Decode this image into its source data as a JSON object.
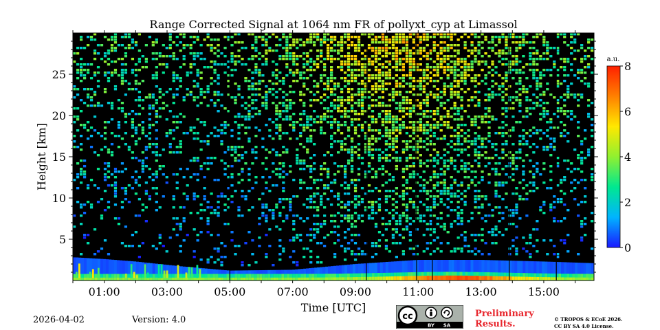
{
  "chart_data": {
    "type": "heatmap",
    "title": "Range Corrected Signal at 1064 nm FR of pollyxt_cyp at Limassol",
    "xlabel": "Time [UTC]",
    "ylabel": "Height [km]",
    "x_range_hours": [
      0,
      16.6
    ],
    "ylim_km": [
      0,
      30
    ],
    "x_ticks": [
      {
        "value": 1,
        "label": "01:00"
      },
      {
        "value": 3,
        "label": "03:00"
      },
      {
        "value": 5,
        "label": "05:00"
      },
      {
        "value": 7,
        "label": "07:00"
      },
      {
        "value": 9,
        "label": "09:00"
      },
      {
        "value": 11,
        "label": "11:00"
      },
      {
        "value": 13,
        "label": "13:00"
      },
      {
        "value": 15,
        "label": "15:00"
      }
    ],
    "y_ticks": [
      {
        "value": 5,
        "label": "5"
      },
      {
        "value": 10,
        "label": "10"
      },
      {
        "value": 15,
        "label": "15"
      },
      {
        "value": 20,
        "label": "20"
      },
      {
        "value": 25,
        "label": "25"
      }
    ],
    "colorbar": {
      "unit": "a.u.",
      "range": [
        0,
        8
      ],
      "ticks": [
        {
          "value": 0,
          "label": "0"
        },
        {
          "value": 2,
          "label": "2"
        },
        {
          "value": 4,
          "label": "4"
        },
        {
          "value": 6,
          "label": "6"
        },
        {
          "value": 8,
          "label": "8"
        }
      ],
      "colors": [
        "#1a1aff",
        "#00b4ff",
        "#00e890",
        "#90f030",
        "#ffe800",
        "#ff8000",
        "#ff2000"
      ]
    },
    "gap_times_hours": [
      5.0,
      9.35,
      10.95,
      11.45,
      13.9,
      15.4
    ],
    "boundary_layer_top_km": [
      {
        "time": 0.1,
        "height": 2.8
      },
      {
        "time": 1.0,
        "height": 2.6
      },
      {
        "time": 2.0,
        "height": 2.3
      },
      {
        "time": 3.5,
        "height": 1.7
      },
      {
        "time": 5.0,
        "height": 1.2
      },
      {
        "time": 7.0,
        "height": 1.3
      },
      {
        "time": 9.0,
        "height": 2.0
      },
      {
        "time": 11.0,
        "height": 2.5
      },
      {
        "time": 13.0,
        "height": 2.5
      },
      {
        "time": 15.0,
        "height": 2.3
      },
      {
        "time": 16.6,
        "height": 2.1
      }
    ]
  },
  "footer": {
    "date": "2026-04-02",
    "version": "Version: 4.0",
    "preliminary_line1": "Preliminary",
    "preliminary_line2": "Results.",
    "copyright_line1": "© TROPOS & ECoE 2026.",
    "copyright_line2": "CC BY SA 4.0 License.",
    "license_badge": {
      "cc": "cc",
      "by": "BY",
      "sa": "SA"
    }
  }
}
